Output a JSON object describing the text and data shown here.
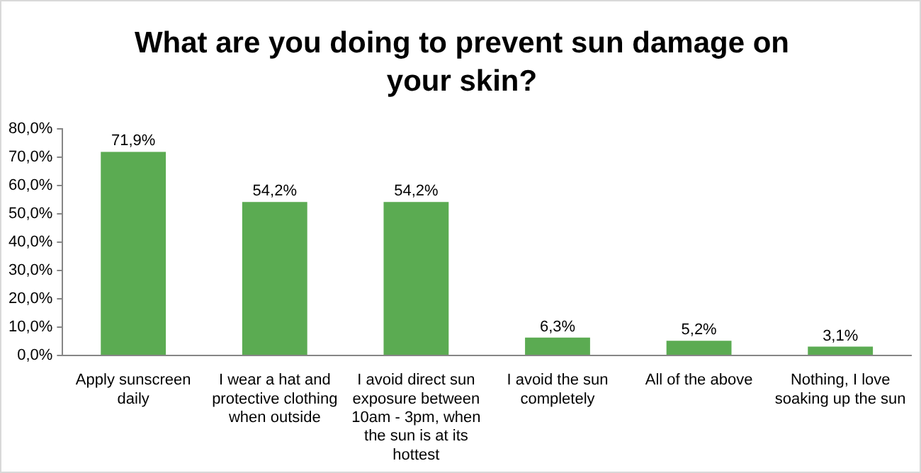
{
  "chart_data": {
    "type": "bar",
    "title": "What are you doing to prevent sun damage on your skin?",
    "categories": [
      "Apply sunscreen daily",
      "I wear a hat and protective clothing when outside",
      "I avoid direct sun exposure between 10am - 3pm, when the sun is at its hottest",
      "I avoid the sun completely",
      "All of the above",
      "Nothing, I love soaking up the sun"
    ],
    "values": [
      71.9,
      54.2,
      54.2,
      6.3,
      5.2,
      3.1
    ],
    "value_labels": [
      "71,9%",
      "54,2%",
      "54,2%",
      "6,3%",
      "5,2%",
      "3,1%"
    ],
    "color": "#5bab52",
    "ylim": [
      0,
      80
    ],
    "yticks": [
      {
        "value": 0,
        "label": "0,0%"
      },
      {
        "value": 10,
        "label": "10,0%"
      },
      {
        "value": 20,
        "label": "20,0%"
      },
      {
        "value": 30,
        "label": "30,0%"
      },
      {
        "value": 40,
        "label": "40,0%"
      },
      {
        "value": 50,
        "label": "50,0%"
      },
      {
        "value": 60,
        "label": "60,0%"
      },
      {
        "value": 70,
        "label": "70,0%"
      },
      {
        "value": 80,
        "label": "80,0%"
      }
    ],
    "grid": false
  }
}
